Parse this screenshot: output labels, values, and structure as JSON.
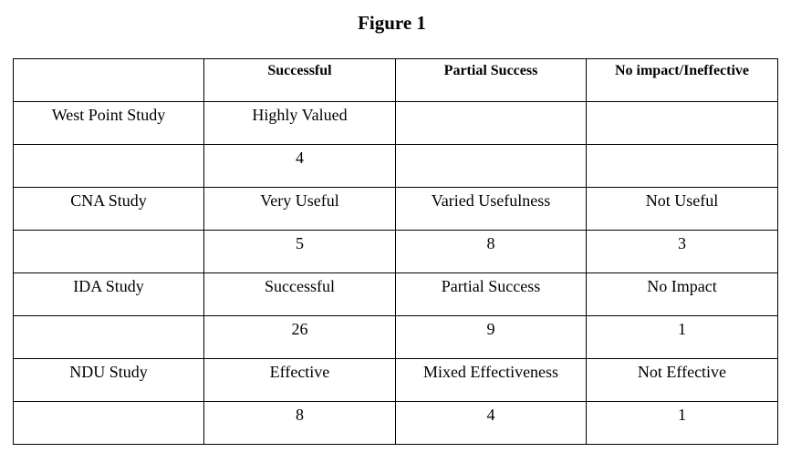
{
  "title": "Figure 1",
  "table": {
    "headers": [
      "",
      "Successful",
      "Partial Success",
      "No impact/Ineffective"
    ],
    "rows": [
      [
        "West Point Study",
        "Highly Valued",
        "",
        ""
      ],
      [
        "",
        "4",
        "",
        ""
      ],
      [
        "CNA Study",
        "Very Useful",
        "Varied Usefulness",
        "Not Useful"
      ],
      [
        "",
        "5",
        "8",
        "3"
      ],
      [
        "IDA Study",
        "Successful",
        "Partial Success",
        "No Impact"
      ],
      [
        "",
        "26",
        "9",
        "1"
      ],
      [
        "NDU Study",
        "Effective",
        "Mixed Effectiveness",
        "Not Effective"
      ],
      [
        "",
        "8",
        "4",
        "1"
      ]
    ]
  }
}
